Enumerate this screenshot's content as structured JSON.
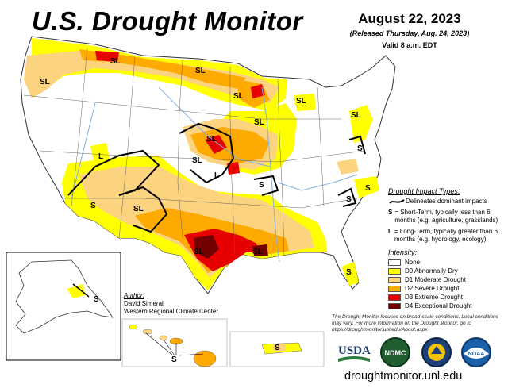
{
  "header": {
    "title": "U.S. Drought Monitor",
    "date": "August 22, 2023",
    "released": "(Released Thursday, Aug. 24, 2023)",
    "valid": "Valid 8 a.m. EDT"
  },
  "impact_legend": {
    "heading": "Drought Impact Types:",
    "line_text": "Delineates dominant impacts",
    "s_key": "S",
    "s_text": "= Short-Term, typically less than 6 months (e.g. agriculture, grasslands)",
    "l_key": "L",
    "l_text": "= Long-Term, typically greater than 6 months (e.g. hydrology, ecology)"
  },
  "intensity_legend": {
    "heading": "Intensity:",
    "items": [
      {
        "label": "None",
        "color": "#ffffff"
      },
      {
        "label": "D0 Abnormally Dry",
        "color": "#ffff00"
      },
      {
        "label": "D1 Moderate Drought",
        "color": "#fcd37f"
      },
      {
        "label": "D2 Severe Drought",
        "color": "#ffaa00"
      },
      {
        "label": "D3 Extreme Drought",
        "color": "#e60000"
      },
      {
        "label": "D4 Exceptional Drought",
        "color": "#730000"
      }
    ]
  },
  "author": {
    "heading": "Author:",
    "name": "David Simeral",
    "org": "Western Regional Climate Center"
  },
  "disclaimer": "The Drought Monitor focuses on broad-scale conditions. Local conditions may vary. For more information on the Drought Monitor, go to https://droughtmonitor.unl.edu/About.aspx",
  "website": "droughtmonitor.unl.edu",
  "logos": {
    "usda": "USDA",
    "ndmc": "NDMC",
    "noaa": "NOAA"
  },
  "map_labels": {
    "sl_1": "SL",
    "sl_2": "SL",
    "sl_3": "SL",
    "sl_4": "SL",
    "sl_5": "SL",
    "sl_6": "SL",
    "sl_7": "SL",
    "sl_8": "SL",
    "sl_9": "SL",
    "sl_10": "SL",
    "sl_11": "SL",
    "sl_12": "SL",
    "l_1": "L",
    "l_2": "L",
    "s_1": "S",
    "s_2": "S",
    "s_3": "S",
    "s_4": "S",
    "s_5": "S",
    "s_6": "S",
    "s_ak": "S",
    "s_hi": "S",
    "s_pr": "S"
  },
  "colors": {
    "none": "#ffffff",
    "d0": "#ffff00",
    "d1": "#fcd37f",
    "d2": "#ffaa00",
    "d3": "#e60000",
    "d4": "#730000",
    "water": "#7fb0e0"
  }
}
